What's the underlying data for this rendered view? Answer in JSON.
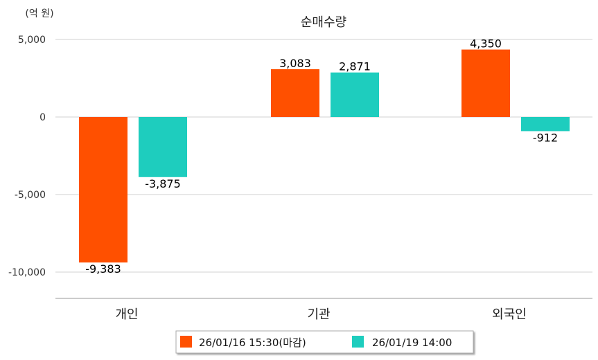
{
  "chart_data": {
    "type": "bar",
    "title": "순매수량",
    "unit_label": "(억 원)",
    "categories": [
      "개인",
      "기관",
      "외국인"
    ],
    "series": [
      {
        "name": "26/01/16 15:30(마감)",
        "color": "#FF5000",
        "values": [
          -9383,
          3083,
          4350
        ],
        "labels": [
          "-9,383",
          "3,083",
          "4,350"
        ]
      },
      {
        "name": "26/01/19 14:00",
        "color": "#1ECDBE",
        "values": [
          -3875,
          2871,
          -912
        ],
        "labels": [
          "-3,875",
          "2,871",
          "-912"
        ]
      }
    ],
    "yticks": [
      5000,
      0,
      -5000,
      -10000
    ],
    "ytick_labels": [
      "5,000",
      "0",
      "-5,000",
      "-10,000"
    ],
    "ylim": [
      -11700,
      5000
    ],
    "grid": true,
    "legend_position": "bottom"
  }
}
